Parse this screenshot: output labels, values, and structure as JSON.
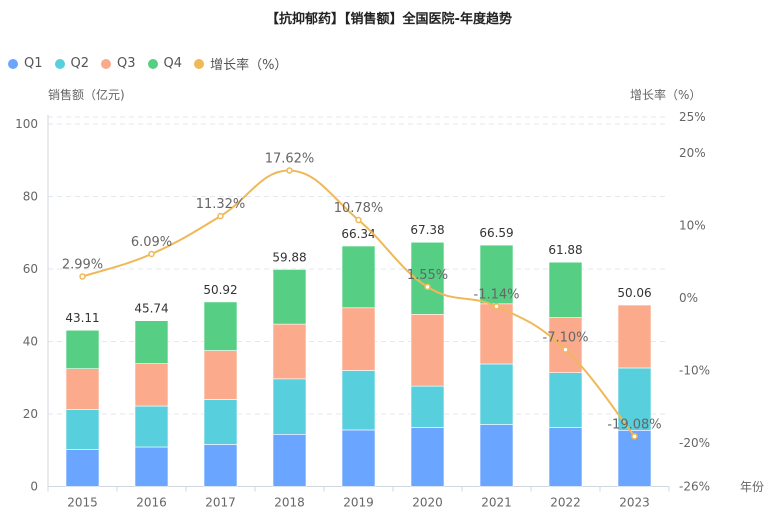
{
  "chart_data": {
    "type": "bar",
    "title": "【抗抑郁药】【销售额】全国医院-年度趋势",
    "categories": [
      "2015",
      "2016",
      "2017",
      "2018",
      "2019",
      "2020",
      "2021",
      "2022",
      "2023"
    ],
    "series": [
      {
        "name": "Q1",
        "type": "bar",
        "stack": true,
        "color": "#6AA6FF",
        "values": [
          10.2,
          10.9,
          11.6,
          14.4,
          15.6,
          16.3,
          17.1,
          16.3,
          15.5
        ]
      },
      {
        "name": "Q2",
        "type": "bar",
        "stack": true,
        "color": "#57CFDD",
        "values": [
          11.0,
          11.3,
          12.4,
          15.3,
          16.4,
          11.4,
          16.7,
          15.1,
          17.2
        ]
      },
      {
        "name": "Q3",
        "type": "bar",
        "stack": true,
        "color": "#FBAA8C",
        "values": [
          11.3,
          11.7,
          13.5,
          15.1,
          17.3,
          19.8,
          16.6,
          15.2,
          17.36
        ]
      },
      {
        "name": "Q4",
        "type": "bar",
        "stack": true,
        "color": "#56CF84",
        "values": [
          10.61,
          11.84,
          13.42,
          15.08,
          17.04,
          19.88,
          16.19,
          15.28,
          0
        ]
      },
      {
        "name": "增长率（%）",
        "type": "line",
        "axis": "right",
        "color": "#EFB858",
        "values": [
          2.99,
          6.09,
          11.32,
          17.62,
          10.78,
          1.55,
          -1.14,
          -7.1,
          -19.08
        ]
      }
    ],
    "totals": [
      43.11,
      45.74,
      50.92,
      59.88,
      66.34,
      67.38,
      66.59,
      61.88,
      50.06
    ],
    "total_labels": [
      "43.11",
      "45.74",
      "50.92",
      "59.88",
      "66.34",
      "67.38",
      "66.59",
      "61.88",
      "50.06"
    ],
    "growth_labels": [
      "2.99%",
      "6.09%",
      "11.32%",
      "17.62%",
      "10.78%",
      "1.55%",
      "-1.14%",
      "-7.10%",
      "-19.08%"
    ],
    "ylabel": "销售额（亿元)",
    "ylabel_right": "增长率（%）",
    "xlabel": "年份",
    "ylim": [
      0,
      100
    ],
    "yticks": [
      0,
      20,
      40,
      60,
      80,
      100
    ],
    "ylim_right": [
      -26,
      25
    ],
    "yticks_right": [
      -26,
      -20,
      -10,
      0,
      10,
      20,
      25
    ],
    "yticks_right_labels": [
      "-26%",
      "-20%",
      "-10%",
      "0%",
      "10%",
      "20%",
      "25%"
    ],
    "grid": true,
    "legend_position": "top-left"
  },
  "legend": [
    {
      "label": "Q1",
      "color": "#6AA6FF"
    },
    {
      "label": "Q2",
      "color": "#57CFDD"
    },
    {
      "label": "Q3",
      "color": "#FBAA8C"
    },
    {
      "label": "Q4",
      "color": "#56CF84"
    },
    {
      "label": "增长率（%）",
      "color": "#EFB858"
    }
  ]
}
